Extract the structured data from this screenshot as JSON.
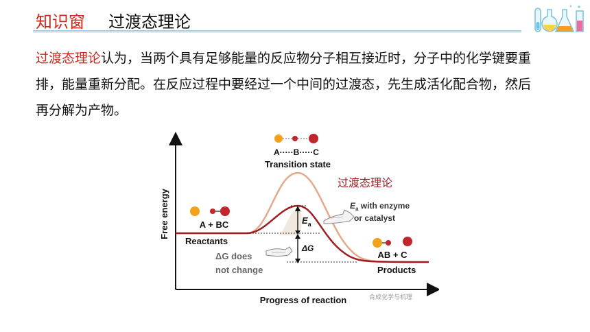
{
  "header": {
    "tag": "知识窗",
    "title": "过渡态理论"
  },
  "paragraph": {
    "highlight": "过渡态理论",
    "text": "认为，当两个具有足够能量的反应物分子相互接近时，分子中的化学键要重排，能量重新分配。在反应过程中要经过一个中间的过渡态，先生成活化配合物，然后再分解为产物。"
  },
  "diagram": {
    "y_axis_label": "Free energy",
    "x_axis_label": "Progress of reaction",
    "ts_molecule_label": "A·····B·····C",
    "transition_state_label": "Transition state",
    "theory_label": "过渡态理论",
    "reactants_formula": "A + BC",
    "reactants_label": "Reactants",
    "products_formula": "AB + C",
    "products_label": "Products",
    "ea_symbol": "E",
    "ea_subscript": "a",
    "ea_note_line1": "E",
    "ea_note_sub": "a",
    "ea_note_rest": " with enzyme",
    "ea_note_line2": "or catalyst",
    "dg_symbol": "ΔG",
    "dg_note_line1": "ΔG does",
    "dg_note_line2": "not change",
    "watermark": "合成化学与机理",
    "colors": {
      "uncatalyzed_curve": "#e3a989",
      "catalyzed_curve": "#a01e23",
      "theory_label": "#a01e23",
      "atom_a": "#f2a21a",
      "atom_b": "#c0262c",
      "atom_c": "#c0262c"
    }
  }
}
